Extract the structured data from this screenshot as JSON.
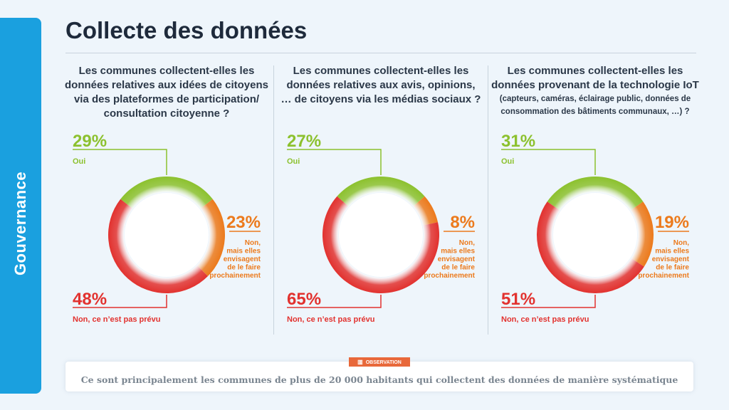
{
  "side_tab": {
    "label": "Gouvernance"
  },
  "page_title": "Collecte des données",
  "observation": {
    "badge": "OBSERVATION",
    "badge_icon": "chart-icon",
    "text": "Ce sont principalement les communes de plus de 20 000 habitants qui collectent des données de manière systématique"
  },
  "colors": {
    "oui": "#8cc12e",
    "envisagent": "#ec7a1c",
    "non": "#e2322f",
    "accent_tab": "#1aa0df"
  },
  "chart_data": [
    {
      "type": "pie",
      "title": "Les communes collectent-elles les données relatives aux idées de citoyens via des plateformes de participation/ consultation citoyenne ?",
      "categories": [
        "Oui",
        "Non, mais elles envisagent de le faire prochainement",
        "Non, ce n'est pas prévu"
      ],
      "values": [
        29,
        23,
        48
      ],
      "value_labels": [
        "29%",
        "23%",
        "48%"
      ]
    },
    {
      "type": "pie",
      "title": "Les communes collectent-elles les données relatives aux avis, opinions, … de citoyens via les médias sociaux ?",
      "categories": [
        "Oui",
        "Non, mais elles envisagent de le faire prochainement",
        "Non, ce n'est pas prévu"
      ],
      "values": [
        27,
        8,
        65
      ],
      "value_labels": [
        "27%",
        "8%",
        "65%"
      ]
    },
    {
      "type": "pie",
      "title": "Les communes collectent-elles les données provenant de la technologie IoT",
      "subtitle": "(capteurs, caméras, éclairage public, données de consommation des bâtiments communaux, …) ?",
      "categories": [
        "Oui",
        "Non, mais elles envisagent de le faire prochainement",
        "Non, ce n'est pas prévu"
      ],
      "values": [
        31,
        19,
        51
      ],
      "value_labels": [
        "31%",
        "19%",
        "51%"
      ]
    }
  ],
  "labels": {
    "oui": "Oui",
    "envisagent_lines": [
      "Non,",
      "mais elles",
      "envisagent",
      "de le faire",
      "prochainement"
    ],
    "non": "Non, ce n’est pas prévu"
  }
}
